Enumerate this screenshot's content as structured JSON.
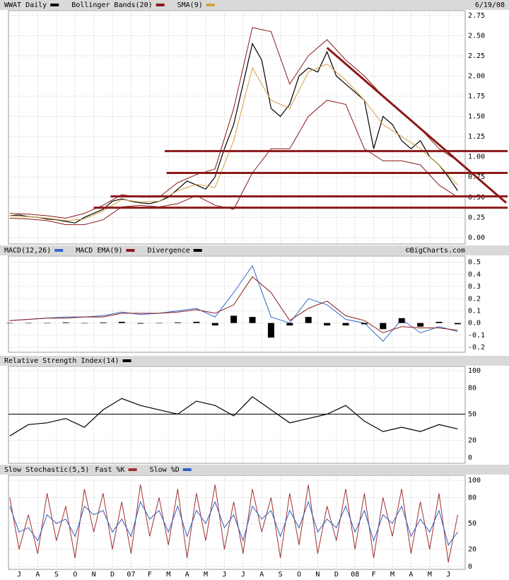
{
  "chart_data": [
    {
      "type": "line",
      "date": "6/19/08",
      "xlim": [
        -0.57,
        23.9
      ],
      "ylim": [
        -0.08,
        2.81
      ],
      "yticks": [
        {
          "value": 0,
          "label": "0.00"
        },
        {
          "value": 0.25,
          "label": "0.25"
        },
        {
          "value": 0.5,
          "label": "0.50"
        },
        {
          "value": 0.75,
          "label": "0.75"
        },
        {
          "value": 1,
          "label": "1.00"
        },
        {
          "value": 1.25,
          "label": "1.25"
        },
        {
          "value": 1.5,
          "label": "1.50"
        },
        {
          "value": 1.75,
          "label": "1.75"
        },
        {
          "value": 2,
          "label": "2.00"
        },
        {
          "value": 2.25,
          "label": "2.25"
        },
        {
          "value": 2.5,
          "label": "2.50"
        },
        {
          "value": 2.75,
          "label": "2.75"
        }
      ],
      "grid": true,
      "series": [
        {
          "name": "WWAT Daily",
          "color": "#000000",
          "x": [
            -0.5,
            0,
            0.5,
            1,
            1.5,
            2,
            2.5,
            3,
            3.5,
            4,
            4.5,
            5,
            5.5,
            6,
            6.5,
            7,
            7.5,
            8,
            8.5,
            9,
            9.5,
            10,
            10.5,
            11,
            11.5,
            12,
            12.5,
            13,
            13.5,
            14,
            14.5,
            15,
            15.5,
            16,
            16.5,
            17,
            17.5,
            18,
            18.5,
            19,
            19.5,
            20,
            20.5,
            21,
            21.5,
            22,
            22.5,
            23,
            23.5
          ],
          "values": [
            0.27,
            0.28,
            0.26,
            0.25,
            0.23,
            0.22,
            0.2,
            0.18,
            0.25,
            0.3,
            0.35,
            0.45,
            0.48,
            0.45,
            0.43,
            0.42,
            0.45,
            0.5,
            0.6,
            0.7,
            0.65,
            0.6,
            0.75,
            1.1,
            1.4,
            1.9,
            2.4,
            2.2,
            1.6,
            1.5,
            1.65,
            2,
            2.1,
            2.05,
            2.3,
            2,
            1.9,
            1.8,
            1.7,
            1.1,
            1.5,
            1.4,
            1.2,
            1.1,
            1.2,
            1,
            0.9,
            0.75,
            0.58
          ]
        },
        {
          "name": "Bollinger Bands(20)",
          "color": "#8b1a1a",
          "x": [
            -0.5,
            0.5,
            1.5,
            2.5,
            3.5,
            4.5,
            5.5,
            6.5,
            7.5,
            8.5,
            9.5,
            10.5,
            11.5,
            12.5,
            13.5,
            14.5,
            15.5,
            16.5,
            17.5,
            18.5,
            19.5,
            20.5,
            21.5,
            22.5,
            23.5
          ],
          "upper": [
            0.3,
            0.29,
            0.27,
            0.24,
            0.3,
            0.4,
            0.53,
            0.5,
            0.5,
            0.68,
            0.78,
            0.85,
            1.6,
            2.6,
            2.55,
            1.9,
            2.25,
            2.45,
            2.2,
            2,
            1.75,
            1.55,
            1.35,
            1.1,
            0.95
          ],
          "lower": [
            0.24,
            0.23,
            0.21,
            0.16,
            0.16,
            0.22,
            0.38,
            0.4,
            0.38,
            0.42,
            0.52,
            0.4,
            0.35,
            0.8,
            1.1,
            1.1,
            1.5,
            1.7,
            1.65,
            1.1,
            0.95,
            0.95,
            0.9,
            0.65,
            0.5
          ]
        },
        {
          "name": "SMA(9)",
          "color": "#d4a040",
          "x": [
            -0.5,
            0.5,
            1.5,
            2.5,
            3.5,
            4.5,
            5.5,
            6.5,
            7.5,
            8.5,
            9.5,
            10.5,
            11.5,
            12.5,
            13.5,
            14.5,
            15.5,
            16.5,
            17.5,
            18.5,
            19.5,
            20.5,
            21.5,
            22.5,
            23.5
          ],
          "values": [
            0.27,
            0.26,
            0.24,
            0.21,
            0.23,
            0.33,
            0.47,
            0.44,
            0.45,
            0.58,
            0.66,
            0.62,
            1.2,
            2.1,
            1.7,
            1.6,
            2.05,
            2.15,
            1.95,
            1.7,
            1.4,
            1.25,
            1.1,
            0.9,
            0.65
          ]
        }
      ],
      "hlines": [
        {
          "value": 1.07,
          "x_start": 7.8
        },
        {
          "value": 0.8,
          "x_start": 7.9
        },
        {
          "value": 0.51,
          "x_start": 4.9
        },
        {
          "value": 0.37,
          "x_start": 4.0
        }
      ],
      "trendline": {
        "x": [
          16.5,
          26.1
        ],
        "values": [
          2.35,
          0.43
        ]
      },
      "annotation_color": "#8b1a1a"
    },
    {
      "type": "macd",
      "credit": "©BigCharts.com",
      "xlim": [
        -0.57,
        23.9
      ],
      "ylim": [
        -0.24,
        0.55
      ],
      "yticks": [
        -0.2,
        -0.1,
        {
          "value": 0,
          "label": "0.0"
        },
        0.1,
        0.2,
        0.3,
        0.4,
        0.5
      ],
      "grid": true,
      "series": [
        {
          "name": "MACD(12,26)",
          "color": "#3366cc",
          "x": [
            -0.5,
            0.5,
            1.5,
            2.5,
            3.5,
            4.5,
            5.5,
            6.5,
            7.5,
            8.5,
            9.5,
            10.5,
            11.5,
            12.5,
            13.5,
            14.5,
            15.5,
            16.5,
            17.5,
            18.5,
            19.5,
            20.5,
            21.5,
            22.5,
            23.5
          ],
          "values": [
            0.02,
            0.03,
            0.04,
            0.05,
            0.05,
            0.06,
            0.09,
            0.07,
            0.08,
            0.1,
            0.12,
            0.05,
            0.25,
            0.47,
            0.05,
            0,
            0.2,
            0.15,
            0.03,
            0,
            -0.15,
            0.03,
            -0.08,
            -0.03,
            -0.07
          ]
        },
        {
          "name": "MACD EMA(9)",
          "color": "#8b1a1a",
          "x": [
            -0.5,
            0.5,
            1.5,
            2.5,
            3.5,
            4.5,
            5.5,
            6.5,
            7.5,
            8.5,
            9.5,
            10.5,
            11.5,
            12.5,
            13.5,
            14.5,
            15.5,
            16.5,
            17.5,
            18.5,
            19.5,
            20.5,
            21.5,
            22.5,
            23.5
          ],
          "values": [
            0.02,
            0.03,
            0.04,
            0.04,
            0.05,
            0.05,
            0.08,
            0.08,
            0.08,
            0.09,
            0.11,
            0.08,
            0.15,
            0.38,
            0.25,
            0.02,
            0.12,
            0.18,
            0.06,
            0.02,
            -0.08,
            -0.03,
            -0.04,
            -0.04,
            -0.06
          ]
        },
        {
          "name": "Divergence",
          "color": "#000000",
          "style": "histogram",
          "x": [
            -0.5,
            0.5,
            1.5,
            2.5,
            3.5,
            4.5,
            5.5,
            6.5,
            7.5,
            8.5,
            9.5,
            10.5,
            11.5,
            12.5,
            13.5,
            14.5,
            15.5,
            16.5,
            17.5,
            18.5,
            19.5,
            20.5,
            21.5,
            22.5,
            23.5
          ],
          "values": [
            0,
            0,
            0,
            0.005,
            0,
            0.005,
            0.01,
            -0.005,
            0,
            0.005,
            0.01,
            -0.02,
            0.06,
            0.05,
            -0.12,
            -0.02,
            0.05,
            -0.02,
            -0.02,
            -0.01,
            -0.05,
            0.04,
            -0.03,
            0.01,
            -0.01
          ]
        }
      ]
    },
    {
      "type": "line",
      "xlim": [
        -0.57,
        23.9
      ],
      "ylim": [
        -6.5,
        104.9
      ],
      "yticks": [
        0,
        20,
        50,
        80,
        100
      ],
      "grid": true,
      "reference_line": 50,
      "series": [
        {
          "name": "Relative Strength Index(14)",
          "color": "#000000",
          "x": [
            -0.5,
            0.5,
            1.5,
            2.5,
            3.5,
            4.5,
            5.5,
            6.5,
            7.5,
            8.5,
            9.5,
            10.5,
            11.5,
            12.5,
            13.5,
            14.5,
            15.5,
            16.5,
            17.5,
            18.5,
            19.5,
            20.5,
            21.5,
            22.5,
            23.5
          ],
          "values": [
            25,
            38,
            40,
            45,
            35,
            55,
            68,
            60,
            55,
            50,
            65,
            60,
            48,
            70,
            55,
            40,
            45,
            50,
            60,
            42,
            30,
            35,
            30,
            38,
            33
          ]
        }
      ]
    },
    {
      "type": "line",
      "title": "Slow Stochastic(5,5)",
      "xlim": [
        -0.57,
        23.9
      ],
      "ylim": [
        -3.3,
        105.8
      ],
      "yticks": [
        0,
        20,
        50,
        80,
        100
      ],
      "grid": true,
      "xticks": [
        {
          "value": 0,
          "label": "J"
        },
        {
          "value": 1,
          "label": "A"
        },
        {
          "value": 2,
          "label": "S"
        },
        {
          "value": 3,
          "label": "O"
        },
        {
          "value": 4,
          "label": "N"
        },
        {
          "value": 5,
          "label": "D"
        },
        {
          "value": 6,
          "label": "07"
        },
        {
          "value": 7,
          "label": "F"
        },
        {
          "value": 8,
          "label": "M"
        },
        {
          "value": 9,
          "label": "A"
        },
        {
          "value": 10,
          "label": "M"
        },
        {
          "value": 11,
          "label": "J"
        },
        {
          "value": 12,
          "label": "J"
        },
        {
          "value": 13,
          "label": "A"
        },
        {
          "value": 14,
          "label": "S"
        },
        {
          "value": 15,
          "label": "O"
        },
        {
          "value": 16,
          "label": "N"
        },
        {
          "value": 17,
          "label": "D"
        },
        {
          "value": 18,
          "label": "08"
        },
        {
          "value": 19,
          "label": "F"
        },
        {
          "value": 20,
          "label": "M"
        },
        {
          "value": 21,
          "label": "A"
        },
        {
          "value": 22,
          "label": "M"
        },
        {
          "value": 23,
          "label": "J"
        }
      ],
      "series": [
        {
          "name": "Fast %K",
          "color": "#a03030",
          "x": [
            -0.5,
            0,
            0.5,
            1,
            1.5,
            2,
            2.5,
            3,
            3.5,
            4,
            4.5,
            5,
            5.5,
            6,
            6.5,
            7,
            7.5,
            8,
            8.5,
            9,
            9.5,
            10,
            10.5,
            11,
            11.5,
            12,
            12.5,
            13,
            13.5,
            14,
            14.5,
            15,
            15.5,
            16,
            16.5,
            17,
            17.5,
            18,
            18.5,
            19,
            19.5,
            20,
            20.5,
            21,
            21.5,
            22,
            22.5,
            23,
            23.5
          ],
          "values": [
            80,
            20,
            60,
            15,
            85,
            30,
            70,
            10,
            90,
            40,
            85,
            20,
            75,
            15,
            95,
            35,
            80,
            25,
            90,
            10,
            85,
            30,
            95,
            20,
            75,
            15,
            90,
            40,
            80,
            10,
            85,
            25,
            95,
            15,
            70,
            30,
            90,
            20,
            85,
            10,
            80,
            35,
            90,
            15,
            75,
            20,
            85,
            5,
            60
          ]
        },
        {
          "name": "Slow %D",
          "color": "#3060c0",
          "x": [
            -0.5,
            0,
            0.5,
            1,
            1.5,
            2,
            2.5,
            3,
            3.5,
            4,
            4.5,
            5,
            5.5,
            6,
            6.5,
            7,
            7.5,
            8,
            8.5,
            9,
            9.5,
            10,
            10.5,
            11,
            11.5,
            12,
            12.5,
            13,
            13.5,
            14,
            14.5,
            15,
            15.5,
            16,
            16.5,
            17,
            17.5,
            18,
            18.5,
            19,
            19.5,
            20,
            20.5,
            21,
            21.5,
            22,
            22.5,
            23,
            23.5
          ],
          "values": [
            70,
            40,
            45,
            30,
            60,
            50,
            55,
            35,
            70,
            60,
            65,
            40,
            55,
            35,
            75,
            55,
            65,
            40,
            70,
            35,
            65,
            50,
            75,
            45,
            60,
            30,
            70,
            55,
            65,
            35,
            65,
            45,
            75,
            40,
            55,
            45,
            70,
            40,
            65,
            30,
            60,
            50,
            70,
            35,
            55,
            40,
            65,
            25,
            40
          ]
        }
      ]
    }
  ]
}
